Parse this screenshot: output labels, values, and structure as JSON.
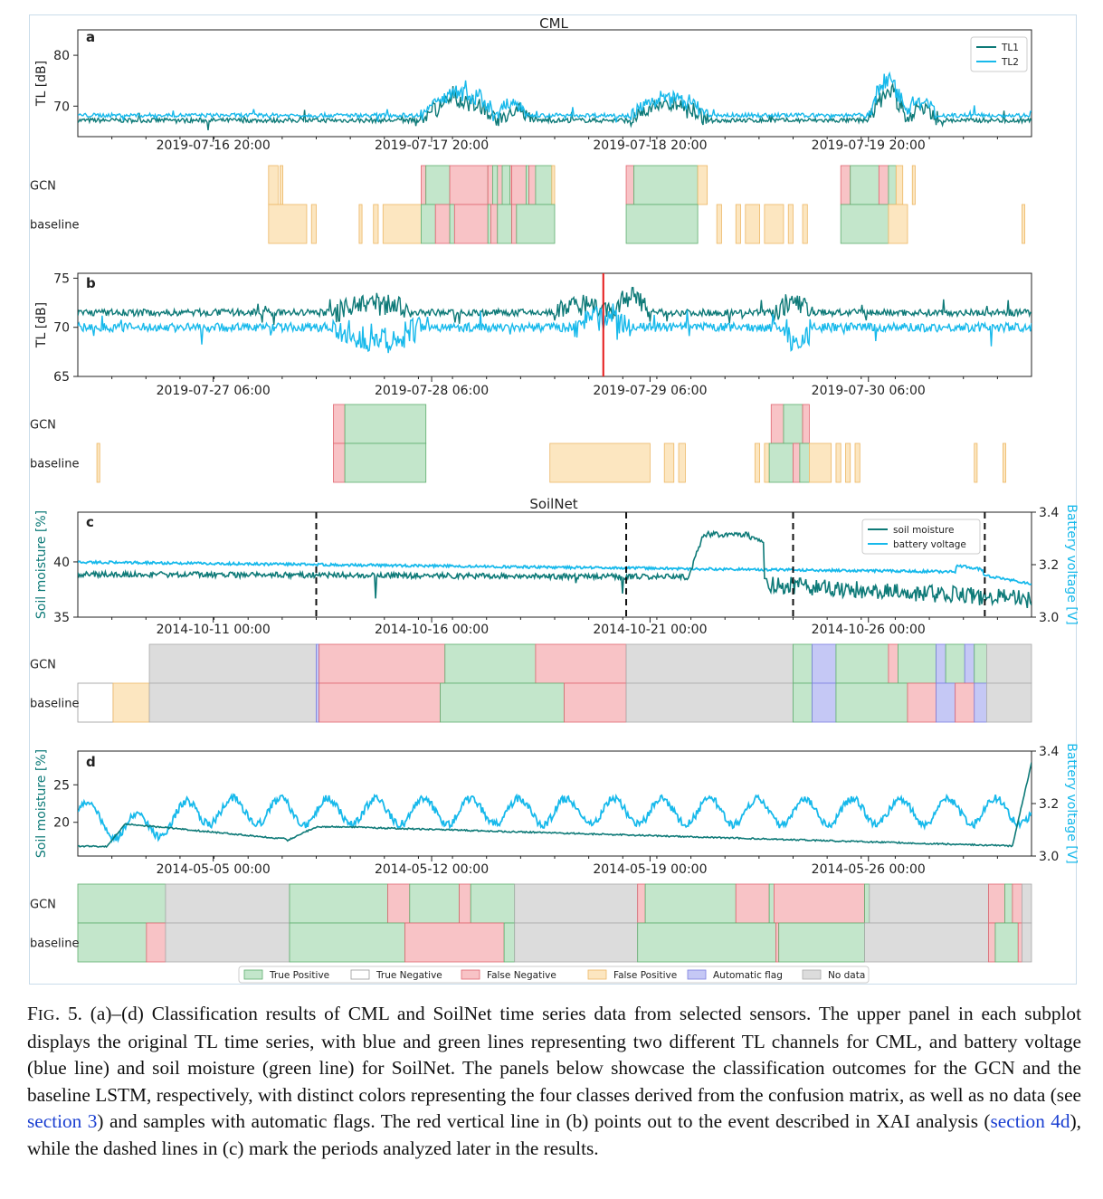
{
  "figure": {
    "section_titles": {
      "cml": "CML",
      "soilnet": "SoilNet"
    },
    "row_labels": {
      "gcn": "GCN",
      "baseline": "baseline"
    },
    "legend": [
      {
        "label": "True Positive",
        "color": "#c3e6cb",
        "edge": "#5fae6e"
      },
      {
        "label": "True Negative",
        "color": "#ffffff",
        "edge": "#999999"
      },
      {
        "label": "False Negative",
        "color": "#f8c3c6",
        "edge": "#e06670"
      },
      {
        "label": "False Positive",
        "color": "#fce6c0",
        "edge": "#ecb765"
      },
      {
        "label": "Automatic flag",
        "color": "#c5c8f5",
        "edge": "#7b7fe0"
      },
      {
        "label": "No data",
        "color": "#dcdcdc",
        "edge": "#aaaaaa"
      }
    ],
    "colors": {
      "teal": "#0e7a78",
      "cyan": "#17b9eb",
      "event_line": "#e51a1a"
    }
  },
  "chart_data": [
    {
      "panel": "a",
      "type": "line",
      "ylabel": "TL [dB]",
      "yticks": [
        70,
        80
      ],
      "ylim": [
        64,
        85
      ],
      "x_tick_labels": [
        "2019-07-16 20:00",
        "2019-07-17 20:00",
        "2019-07-18 20:00",
        "2019-07-19 20:00"
      ],
      "legend_position": "top-right",
      "series": [
        {
          "name": "TL1",
          "color": "#0e7a78",
          "base": 67.2,
          "noise": 0.9,
          "bumps": [
            [
              0.36,
              0.44,
              5.0
            ],
            [
              0.44,
              0.48,
              2.5
            ],
            [
              0.58,
              0.66,
              4.0
            ],
            [
              0.83,
              0.87,
              7.0
            ],
            [
              0.87,
              0.9,
              3.0
            ]
          ]
        },
        {
          "name": "TL2",
          "color": "#17b9eb",
          "base": 68.2,
          "noise": 0.8,
          "bumps": [
            [
              0.36,
              0.44,
              6.0
            ],
            [
              0.44,
              0.47,
              3.0
            ],
            [
              0.58,
              0.66,
              4.5
            ],
            [
              0.83,
              0.87,
              9.0
            ],
            [
              0.87,
              0.9,
              3.5
            ]
          ]
        }
      ]
    },
    {
      "panel": "b",
      "type": "line",
      "ylabel": "TL [dB]",
      "yticks": [
        65,
        70,
        75
      ],
      "ylim": [
        65,
        75.5
      ],
      "x_tick_labels": [
        "2019-07-27 06:00",
        "2019-07-28 06:00",
        "2019-07-29 06:00",
        "2019-07-30 06:00"
      ],
      "event_x": 0.551,
      "series": [
        {
          "name": "TL1",
          "color": "#0e7a78",
          "base": 71.5,
          "noise": 0.7,
          "bumps": [
            [
              0.27,
              0.35,
              1.2
            ],
            [
              0.5,
              0.56,
              0.8
            ],
            [
              0.56,
              0.6,
              2.0
            ],
            [
              0.73,
              0.77,
              1.0
            ]
          ]
        },
        {
          "name": "TL2",
          "color": "#17b9eb",
          "base": 70.0,
          "noise": 0.9,
          "bumps": [
            [
              0.27,
              0.36,
              -1.5
            ],
            [
              0.52,
              0.58,
              1.5
            ],
            [
              0.74,
              0.77,
              -2.0
            ]
          ]
        }
      ]
    },
    {
      "panel": "c",
      "type": "line",
      "ylabel": "Soil moisture [%]",
      "y2label": "Battery voltage [V]",
      "yticks": [
        35,
        40
      ],
      "ylim": [
        35,
        44.5
      ],
      "y2ticks": [
        3.0,
        3.2,
        3.4
      ],
      "y2lim": [
        3.0,
        3.4
      ],
      "x_tick_labels": [
        "2014-10-11 00:00",
        "2014-10-16 00:00",
        "2014-10-21 00:00",
        "2014-10-26 00:00"
      ],
      "dashed_x": [
        0.25,
        0.575,
        0.75,
        0.951
      ],
      "legend_position": "top-right",
      "series": [
        {
          "name": "soil moisture",
          "color": "#0e7a78"
        },
        {
          "name": "battery voltage",
          "color": "#17b9eb"
        }
      ]
    },
    {
      "panel": "d",
      "type": "line",
      "ylabel": "Soil moisture [%]",
      "y2label": "Battery voltage [V]",
      "yticks": [
        20,
        25
      ],
      "ylim": [
        15.5,
        29.5
      ],
      "y2ticks": [
        3.0,
        3.2,
        3.4
      ],
      "y2lim": [
        3.0,
        3.4
      ],
      "x_tick_labels": [
        "2014-05-05 00:00",
        "2014-05-12 00:00",
        "2014-05-19 00:00",
        "2014-05-26 00:00"
      ],
      "series": [
        {
          "name": "soil moisture",
          "color": "#0e7a78"
        },
        {
          "name": "battery voltage",
          "color": "#17b9eb"
        }
      ]
    }
  ],
  "classification_strips": {
    "a": {
      "gcn": [
        [
          "fp",
          0.2,
          0.21
        ],
        [
          "fp",
          0.212,
          0.215
        ],
        [
          "fn",
          0.36,
          0.365
        ],
        [
          "tp",
          0.365,
          0.39
        ],
        [
          "fn",
          0.39,
          0.43
        ],
        [
          "tp",
          0.43,
          0.435
        ],
        [
          "fn",
          0.435,
          0.445
        ],
        [
          "tp",
          0.445,
          0.455
        ],
        [
          "fn",
          0.455,
          0.43
        ],
        [
          "tp",
          0.435,
          0.44
        ],
        [
          "tp",
          0.445,
          0.453
        ],
        [
          "fn",
          0.455,
          0.47
        ],
        [
          "tp",
          0.47,
          0.473
        ],
        [
          "fn",
          0.473,
          0.48
        ],
        [
          "tp",
          0.48,
          0.497
        ],
        [
          "fp",
          0.497,
          0.5
        ],
        [
          "fn",
          0.575,
          0.583
        ],
        [
          "tp",
          0.583,
          0.65
        ],
        [
          "fp",
          0.65,
          0.66
        ],
        [
          "fn",
          0.8,
          0.81
        ],
        [
          "tp",
          0.81,
          0.84
        ],
        [
          "fn",
          0.84,
          0.85
        ],
        [
          "tp",
          0.85,
          0.858
        ],
        [
          "fp",
          0.858,
          0.865
        ],
        [
          "fp",
          0.875,
          0.878
        ]
      ],
      "baseline": [
        [
          "fp",
          0.2,
          0.24
        ],
        [
          "fp",
          0.245,
          0.25
        ],
        [
          "fp",
          0.295,
          0.298
        ],
        [
          "fp",
          0.31,
          0.315
        ],
        [
          "fp",
          0.32,
          0.36
        ],
        [
          "tp",
          0.36,
          0.375
        ],
        [
          "fn",
          0.375,
          0.39
        ],
        [
          "tp",
          0.39,
          0.395
        ],
        [
          "fn",
          0.395,
          0.43
        ],
        [
          "tp",
          0.43,
          0.433
        ],
        [
          "fn",
          0.433,
          0.44
        ],
        [
          "tp",
          0.44,
          0.455
        ],
        [
          "fn",
          0.455,
          0.46
        ],
        [
          "tp",
          0.46,
          0.5
        ],
        [
          "tp",
          0.575,
          0.65
        ],
        [
          "fp",
          0.67,
          0.675
        ],
        [
          "fp",
          0.69,
          0.695
        ],
        [
          "fp",
          0.7,
          0.715
        ],
        [
          "fp",
          0.72,
          0.74
        ],
        [
          "fp",
          0.745,
          0.75
        ],
        [
          "fp",
          0.76,
          0.765
        ],
        [
          "tp",
          0.8,
          0.85
        ],
        [
          "fp",
          0.85,
          0.87
        ],
        [
          "fp",
          0.99,
          0.993
        ]
      ]
    },
    "b": {
      "gcn": [
        [
          "fn",
          0.268,
          0.28
        ],
        [
          "tp",
          0.28,
          0.365
        ],
        [
          "fn",
          0.727,
          0.74
        ],
        [
          "tp",
          0.74,
          0.76
        ],
        [
          "fn",
          0.76,
          0.767
        ]
      ],
      "baseline": [
        [
          "fp",
          0.02,
          0.023
        ],
        [
          "fn",
          0.268,
          0.28
        ],
        [
          "tp",
          0.28,
          0.365
        ],
        [
          "fp",
          0.495,
          0.6
        ],
        [
          "fp",
          0.615,
          0.625
        ],
        [
          "fp",
          0.63,
          0.637
        ],
        [
          "fp",
          0.71,
          0.715
        ],
        [
          "fp",
          0.72,
          0.725
        ],
        [
          "tp",
          0.725,
          0.75
        ],
        [
          "fn",
          0.75,
          0.757
        ],
        [
          "tp",
          0.757,
          0.767
        ],
        [
          "fp",
          0.767,
          0.79
        ],
        [
          "fp",
          0.795,
          0.8
        ],
        [
          "fp",
          0.805,
          0.81
        ],
        [
          "fp",
          0.815,
          0.82
        ],
        [
          "fp",
          0.94,
          0.943
        ],
        [
          "fp",
          0.97,
          0.973
        ]
      ]
    },
    "c": {
      "gcn": [
        [
          "nd",
          0.075,
          0.25
        ],
        [
          "af",
          0.25,
          0.253
        ],
        [
          "fn",
          0.253,
          0.385
        ],
        [
          "tp",
          0.385,
          0.48
        ],
        [
          "fn",
          0.48,
          0.575
        ],
        [
          "nd",
          0.575,
          0.75
        ],
        [
          "tp",
          0.75,
          0.77
        ],
        [
          "af",
          0.77,
          0.795
        ],
        [
          "tp",
          0.795,
          0.85
        ],
        [
          "fn",
          0.85,
          0.86
        ],
        [
          "tp",
          0.86,
          0.9
        ],
        [
          "af",
          0.9,
          0.91
        ],
        [
          "tp",
          0.91,
          0.93
        ],
        [
          "af",
          0.93,
          0.94
        ],
        [
          "tp",
          0.94,
          0.953
        ],
        [
          "nd",
          0.953,
          1.0
        ]
      ],
      "baseline": [
        [
          "tn",
          0.0,
          0.037
        ],
        [
          "fp",
          0.037,
          0.075
        ],
        [
          "nd",
          0.075,
          0.25
        ],
        [
          "af",
          0.25,
          0.253
        ],
        [
          "fn",
          0.253,
          0.38
        ],
        [
          "tp",
          0.38,
          0.51
        ],
        [
          "fn",
          0.51,
          0.575
        ],
        [
          "nd",
          0.575,
          0.75
        ],
        [
          "tp",
          0.75,
          0.77
        ],
        [
          "af",
          0.77,
          0.795
        ],
        [
          "tp",
          0.795,
          0.87
        ],
        [
          "fn",
          0.87,
          0.9
        ],
        [
          "af",
          0.9,
          0.92
        ],
        [
          "fn",
          0.92,
          0.94
        ],
        [
          "af",
          0.94,
          0.953
        ],
        [
          "nd",
          0.953,
          1.0
        ]
      ]
    },
    "d": {
      "gcn": [
        [
          "tp",
          0.0,
          0.092
        ],
        [
          "nd",
          0.092,
          0.222
        ],
        [
          "tp",
          0.222,
          0.325
        ],
        [
          "fn",
          0.325,
          0.348
        ],
        [
          "tp",
          0.348,
          0.4
        ],
        [
          "fn",
          0.4,
          0.412
        ],
        [
          "tp",
          0.412,
          0.458
        ],
        [
          "nd",
          0.458,
          0.587
        ],
        [
          "fn",
          0.587,
          0.595
        ],
        [
          "tp",
          0.595,
          0.69
        ],
        [
          "fn",
          0.69,
          0.725
        ],
        [
          "tp",
          0.725,
          0.73
        ],
        [
          "fn",
          0.73,
          0.825
        ],
        [
          "tp",
          0.825,
          0.83
        ],
        [
          "nd",
          0.83,
          0.955
        ],
        [
          "fn",
          0.955,
          0.972
        ],
        [
          "tp",
          0.972,
          0.98
        ],
        [
          "fn",
          0.98,
          0.99
        ],
        [
          "nd",
          0.99,
          1.0
        ]
      ],
      "baseline": [
        [
          "tp",
          0.0,
          0.072
        ],
        [
          "fn",
          0.072,
          0.092
        ],
        [
          "nd",
          0.092,
          0.222
        ],
        [
          "tp",
          0.222,
          0.343
        ],
        [
          "fn",
          0.343,
          0.447
        ],
        [
          "tp",
          0.447,
          0.458
        ],
        [
          "nd",
          0.458,
          0.587
        ],
        [
          "tp",
          0.587,
          0.732
        ],
        [
          "fn",
          0.732,
          0.735
        ],
        [
          "tp",
          0.735,
          0.825
        ],
        [
          "nd",
          0.825,
          0.955
        ],
        [
          "fn",
          0.955,
          0.962
        ],
        [
          "tp",
          0.962,
          0.986
        ],
        [
          "fn",
          0.986,
          0.99
        ],
        [
          "nd",
          0.99,
          1.0
        ]
      ]
    }
  },
  "caption": {
    "lead": "F",
    "lead_small": "IG",
    "text_1": ". 5. (a)–(d) Classification results of CML and SoilNet time series data from selected sensors. The upper panel in each subplot displays the original TL time series, with blue and green lines representing two different TL channels for CML, and battery voltage (blue line) and soil moisture (green line) for SoilNet. The panels below showcase the classification outcomes for the GCN and the baseline LSTM, respectively, with distinct colors representing the four classes derived from the confusion matrix, as well as no data (see ",
    "ref_1": "section 3",
    "text_2": ") and samples with automatic flags. The red vertical line in (b) points out to the event described in XAI analysis (",
    "ref_2": "section 4d",
    "text_3": "), while the dashed lines in (c) mark the periods analyzed later in the results."
  }
}
